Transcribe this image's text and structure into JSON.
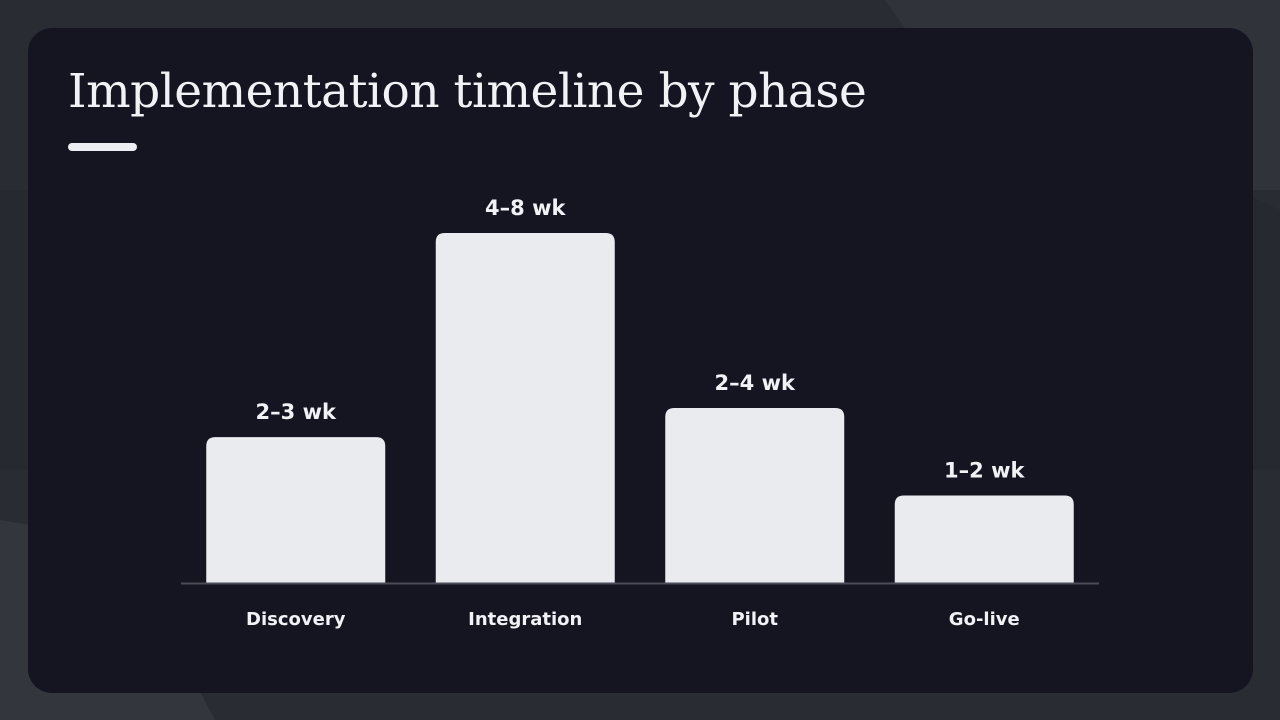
{
  "slide": {
    "title": "Implementation timeline by phase"
  },
  "colors": {
    "background": "#2a2c33",
    "card": "#141521",
    "bar": "#eaebef",
    "text": "#f1f2f5",
    "axis": "#4a4c58"
  },
  "chart_data": {
    "type": "bar",
    "title": "Implementation timeline by phase",
    "xlabel": "",
    "ylabel": "",
    "categories": [
      "Discovery",
      "Integration",
      "Pilot",
      "Go-live"
    ],
    "series": [
      {
        "values": [
          2.5,
          6,
          3,
          1.5
        ],
        "ranges": [
          [
            2,
            3
          ],
          [
            4,
            8
          ],
          [
            2,
            4
          ],
          [
            1,
            2
          ]
        ],
        "labels": [
          "2–3 wk",
          "4–8 wk",
          "2–4 wk",
          "1–2 wk"
        ]
      }
    ],
    "ylim": [
      0,
      6
    ],
    "grid": false,
    "legend": "none",
    "unit": "wk"
  }
}
